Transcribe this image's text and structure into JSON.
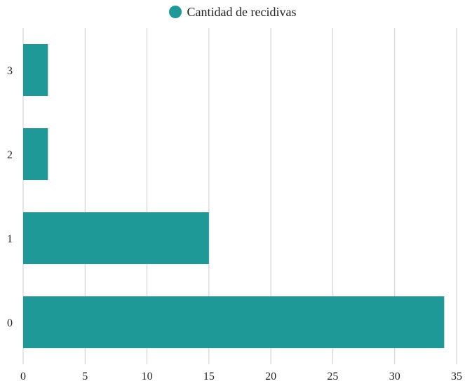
{
  "chart_data": {
    "type": "bar",
    "orientation": "horizontal",
    "categories": [
      "0",
      "1",
      "2",
      "3"
    ],
    "series": [
      {
        "name": "Cantidad de recidivas",
        "values": [
          34,
          15,
          2,
          2
        ]
      }
    ],
    "xlim": [
      0,
      35
    ],
    "x_ticks": [
      0,
      5,
      10,
      15,
      20,
      25,
      30,
      35
    ],
    "grid": "vertical",
    "legend": "top-center",
    "title": "",
    "xlabel": "",
    "ylabel": ""
  },
  "colors": {
    "bar": "#1f9898",
    "grid": "#cccccc",
    "text": "#222222"
  }
}
